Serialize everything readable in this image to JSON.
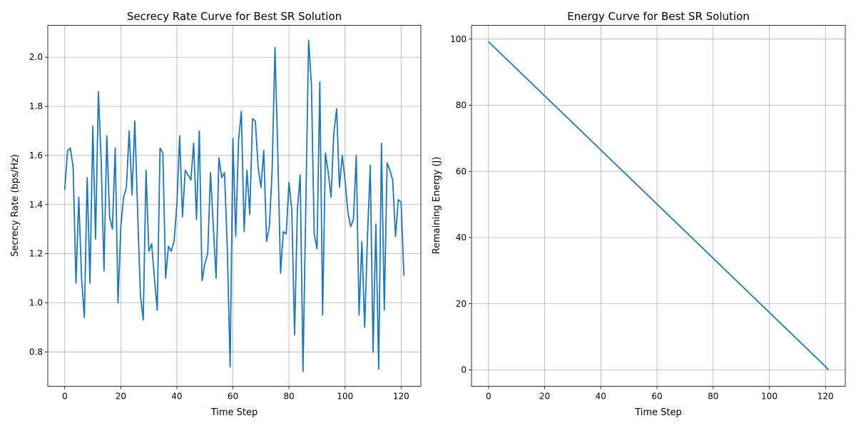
{
  "chart_data": [
    {
      "type": "line",
      "title": "Secrecy Rate Curve for Best SR Solution",
      "xlabel": "Time Step",
      "ylabel": "Secrecy Rate (bps/Hz)",
      "xlim": [
        -6.05,
        127.05
      ],
      "ylim": [
        0.66,
        2.13
      ],
      "xticks": [
        0,
        20,
        40,
        60,
        80,
        100,
        120
      ],
      "yticks": [
        0.8,
        1.0,
        1.2,
        1.4,
        1.6,
        1.8,
        2.0
      ],
      "xtick_labels": [
        "0",
        "20",
        "40",
        "60",
        "80",
        "100",
        "120"
      ],
      "ytick_labels": [
        "0.8",
        "1.0",
        "1.2",
        "1.4",
        "1.6",
        "1.8",
        "2.0"
      ],
      "grid": true,
      "color": "#1f77b4",
      "x": [
        0,
        1,
        2,
        3,
        4,
        5,
        6,
        7,
        8,
        9,
        10,
        11,
        12,
        13,
        14,
        15,
        16,
        17,
        18,
        19,
        20,
        21,
        22,
        23,
        24,
        25,
        26,
        27,
        28,
        29,
        30,
        31,
        32,
        33,
        34,
        35,
        36,
        37,
        38,
        39,
        40,
        41,
        42,
        43,
        44,
        45,
        46,
        47,
        48,
        49,
        50,
        51,
        52,
        53,
        54,
        55,
        56,
        57,
        58,
        59,
        60,
        61,
        62,
        63,
        64,
        65,
        66,
        67,
        68,
        69,
        70,
        71,
        72,
        73,
        74,
        75,
        76,
        77,
        78,
        79,
        80,
        81,
        82,
        83,
        84,
        85,
        86,
        87,
        88,
        89,
        90,
        91,
        92,
        93,
        94,
        95,
        96,
        97,
        98,
        99,
        100,
        101,
        102,
        103,
        104,
        105,
        106,
        107,
        108,
        109,
        110,
        111,
        112,
        113,
        114,
        115,
        116,
        117,
        118,
        119,
        120,
        121
      ],
      "y": [
        1.46,
        1.62,
        1.63,
        1.55,
        1.08,
        1.43,
        1.1,
        0.94,
        1.51,
        1.08,
        1.72,
        1.26,
        1.86,
        1.58,
        1.13,
        1.68,
        1.35,
        1.3,
        1.63,
        1.0,
        1.31,
        1.43,
        1.47,
        1.7,
        1.44,
        1.74,
        1.37,
        1.03,
        0.93,
        1.54,
        1.21,
        1.24,
        1.1,
        0.97,
        1.63,
        1.61,
        1.1,
        1.23,
        1.21,
        1.25,
        1.4,
        1.68,
        1.35,
        1.54,
        1.52,
        1.5,
        1.65,
        1.34,
        1.7,
        1.09,
        1.16,
        1.2,
        1.53,
        1.31,
        1.1,
        1.59,
        1.51,
        1.53,
        1.22,
        0.74,
        1.67,
        1.27,
        1.66,
        1.78,
        1.29,
        1.54,
        1.36,
        1.75,
        1.74,
        1.55,
        1.47,
        1.62,
        1.25,
        1.31,
        1.54,
        2.04,
        1.61,
        1.12,
        1.29,
        1.28,
        1.49,
        1.38,
        0.87,
        1.38,
        1.52,
        0.72,
        1.39,
        2.07,
        1.89,
        1.28,
        1.22,
        1.9,
        0.95,
        1.61,
        1.53,
        1.43,
        1.69,
        1.79,
        1.47,
        1.6,
        1.5,
        1.37,
        1.31,
        1.34,
        1.6,
        0.95,
        1.25,
        0.9,
        1.27,
        1.56,
        0.8,
        1.32,
        0.73,
        1.65,
        0.97,
        1.57,
        1.54,
        1.5,
        1.27,
        1.42,
        1.41,
        1.11
      ]
    },
    {
      "type": "line",
      "title": "Energy Curve for Best SR Solution",
      "xlabel": "Time Step",
      "ylabel": "Remaining Energy (J)",
      "xlim": [
        -6.05,
        127.05
      ],
      "ylim": [
        -4.96,
        104.16
      ],
      "xticks": [
        0,
        20,
        40,
        60,
        80,
        100,
        120
      ],
      "yticks": [
        0,
        20,
        40,
        60,
        80,
        100
      ],
      "xtick_labels": [
        "0",
        "20",
        "40",
        "60",
        "80",
        "100",
        "120"
      ],
      "ytick_labels": [
        "0",
        "20",
        "40",
        "60",
        "80",
        "100"
      ],
      "grid": true,
      "color": "#1f77b4",
      "x": [
        0,
        120,
        121
      ],
      "y": [
        99.2,
        1.0,
        0.0
      ]
    }
  ]
}
